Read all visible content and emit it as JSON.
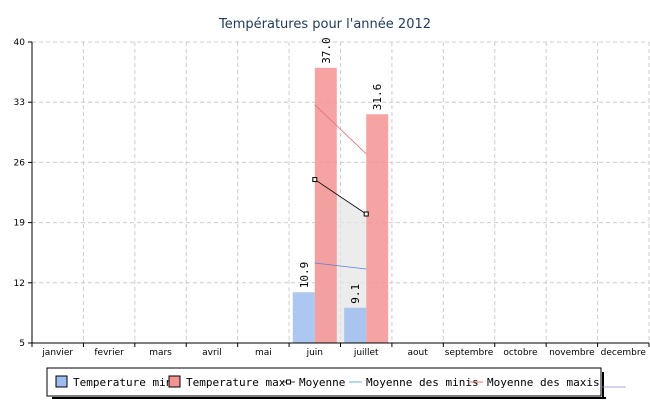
{
  "chart_data": {
    "type": "bar",
    "title": "Températures pour l'année 2012",
    "xlabel": "",
    "ylabel": "",
    "ylim": [
      5,
      40
    ],
    "yticks": [
      5,
      12,
      19,
      26,
      33,
      40
    ],
    "grid": true,
    "legend_position": "bottom",
    "categories": [
      "janvier",
      "fevrier",
      "mars",
      "avril",
      "mai",
      "juin",
      "juillet",
      "aout",
      "septembre",
      "octobre",
      "novembre",
      "decembre"
    ],
    "series": [
      {
        "name": "Temperature min",
        "kind": "bar",
        "color": "#9dbdf0",
        "values": [
          null,
          null,
          null,
          null,
          null,
          10.9,
          9.1,
          null,
          null,
          null,
          null,
          null
        ],
        "labels": [
          "",
          "",
          "",
          "",
          "",
          "10.9",
          "9.1",
          "",
          "",
          "",
          "",
          ""
        ]
      },
      {
        "name": "Temperature max",
        "kind": "bar",
        "color": "#f59393",
        "values": [
          null,
          null,
          null,
          null,
          null,
          37.0,
          31.6,
          null,
          null,
          null,
          null,
          null
        ],
        "labels": [
          "",
          "",
          "",
          "",
          "",
          "37.0",
          "31.6",
          "",
          "",
          "",
          "",
          ""
        ]
      },
      {
        "name": "Moyenne",
        "kind": "line-markers",
        "color": "#000000",
        "values": [
          null,
          null,
          null,
          null,
          null,
          24,
          20,
          null,
          null,
          null,
          null,
          null
        ]
      },
      {
        "name": "Moyenne des minis",
        "kind": "line",
        "color": "#5a7fd8",
        "values": [
          null,
          null,
          null,
          null,
          null,
          14.3,
          13.6,
          null,
          null,
          null,
          null,
          null
        ]
      },
      {
        "name": "Moyenne des maxis",
        "kind": "line",
        "color": "#e07070",
        "values": [
          null,
          null,
          null,
          null,
          null,
          32.7,
          27.0,
          null,
          null,
          null,
          null,
          null
        ]
      }
    ],
    "colors": {
      "axis": "#000000",
      "grid": "#cccccc",
      "fill": "#e6e6e6",
      "legend_minis": "#6fb0d8"
    }
  }
}
